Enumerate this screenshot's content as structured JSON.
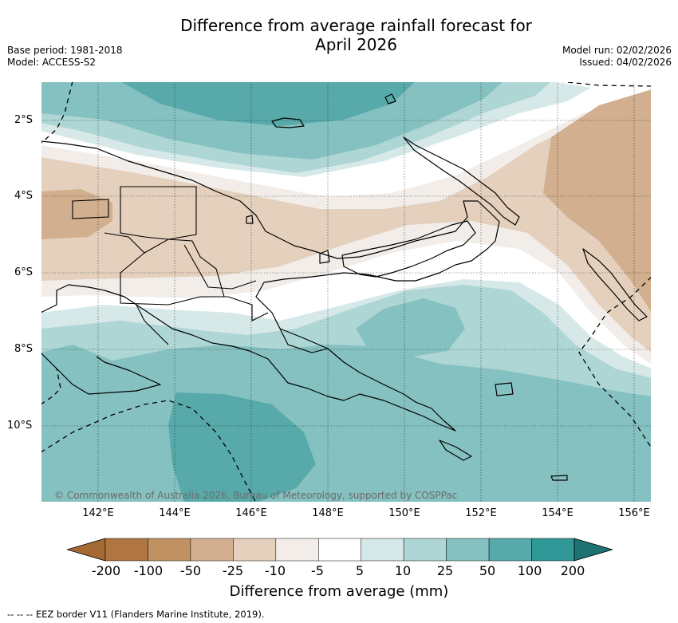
{
  "title_line1": "Difference from average rainfall forecast for",
  "title_line2": "April 2026",
  "base_period": "Base period: 1981-2018",
  "model": "Model: ACCESS-S2",
  "model_run": "Model run: 02/02/2026",
  "issued": "Issued: 04/02/2026",
  "lat_ticks": [
    "2°S",
    "4°S",
    "6°S",
    "8°S",
    "10°S"
  ],
  "lon_ticks": [
    "142°E",
    "144°E",
    "146°E",
    "148°E",
    "150°E",
    "152°E",
    "154°E",
    "156°E"
  ],
  "colorbar": {
    "labels": [
      "-200",
      "-100",
      "-50",
      "-25",
      "-10",
      "-5",
      "5",
      "10",
      "25",
      "50",
      "100",
      "200"
    ],
    "colors": [
      "#a56934",
      "#b07641",
      "#c09163",
      "#d2af8e",
      "#e4d0bd",
      "#f2ede8",
      "#ffffff",
      "#d6e9e8",
      "#aed6d5",
      "#85c1c0",
      "#57aaa9",
      "#2f9896",
      "#1f7271"
    ],
    "title": "Difference from average (mm)"
  },
  "copyright": "© Commonwealth of Australia 2026, Bureau of Meteorology, supported by COSPPac",
  "eez_legend": "-- -- -- EEZ border V11 (Flanders Marine Institute, 2019).",
  "map_icons": [
    "papua-new-guinea-coastline-icon",
    "province-border-icon",
    "eez-border-icon"
  ]
}
